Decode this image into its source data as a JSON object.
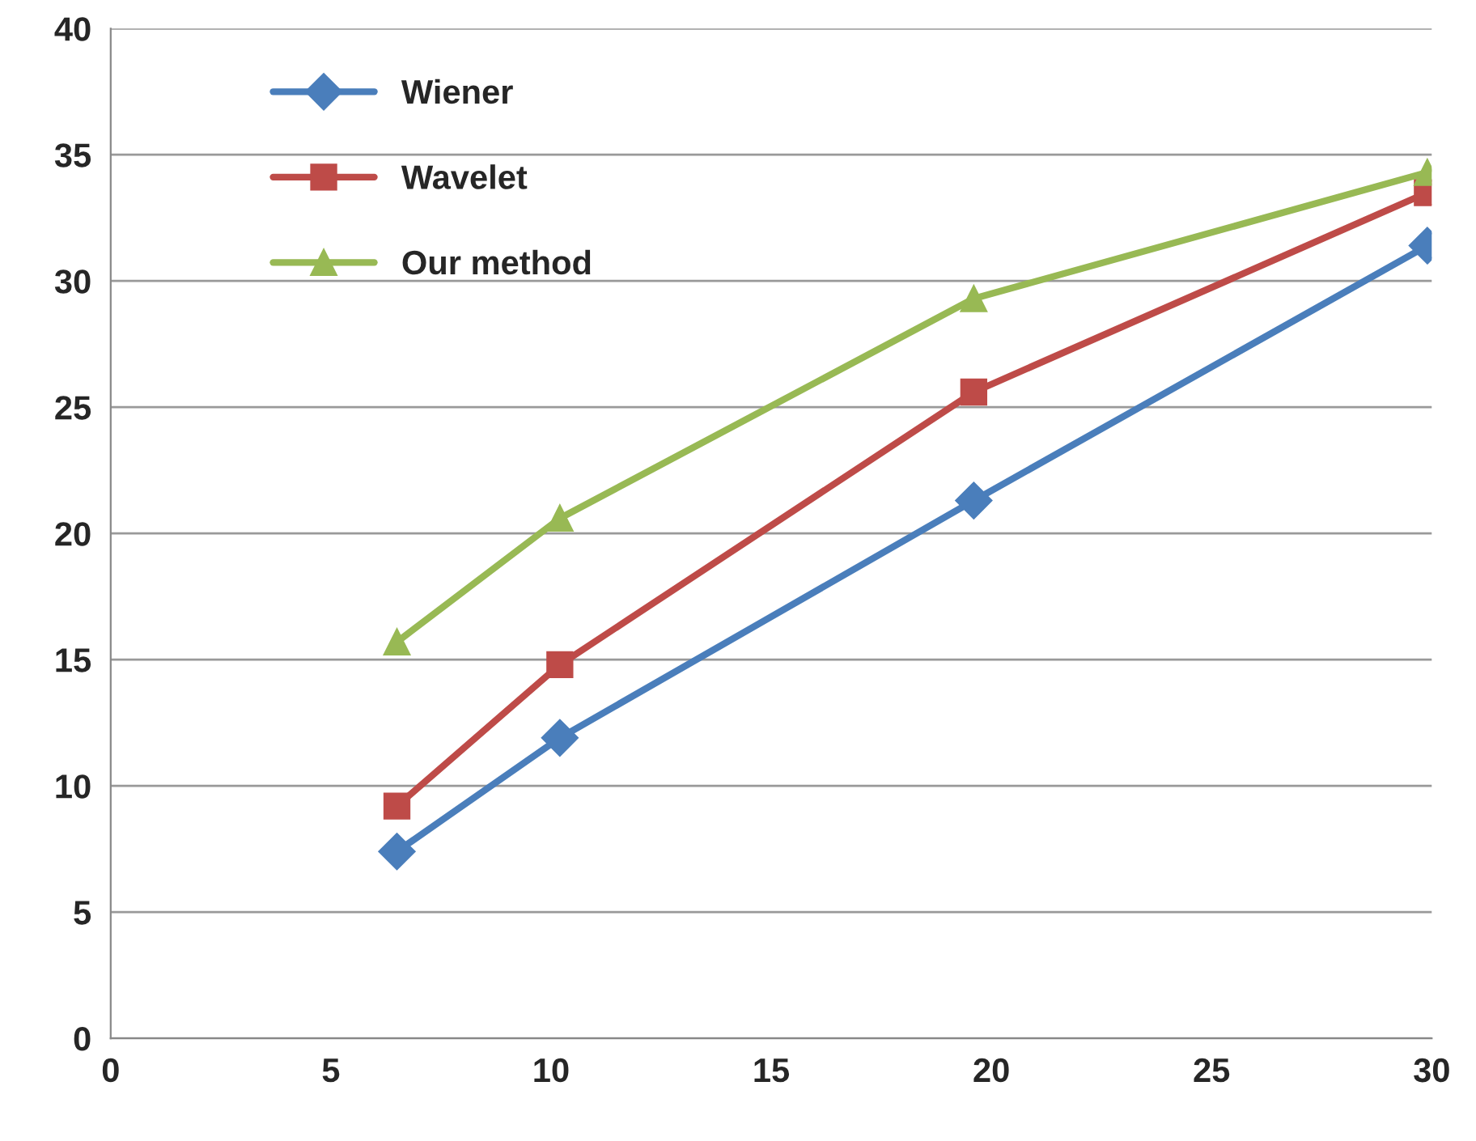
{
  "chart_data": {
    "type": "line",
    "x": [
      6.5,
      10.2,
      19.6,
      29.9
    ],
    "series": [
      {
        "name": "Wiener",
        "color": "#4a7ebb",
        "marker": "diamond",
        "values": [
          7.4,
          11.9,
          21.3,
          31.4
        ]
      },
      {
        "name": "Wavelet",
        "color": "#be4b48",
        "marker": "square",
        "values": [
          9.2,
          14.8,
          25.6,
          33.5
        ]
      },
      {
        "name": "Our method",
        "color": "#98b954",
        "marker": "triangle",
        "values": [
          15.7,
          20.6,
          29.3,
          34.3
        ]
      }
    ],
    "xlim": [
      0,
      30
    ],
    "xticks": [
      0,
      5,
      10,
      15,
      20,
      25,
      30
    ],
    "ylim": [
      0,
      40
    ],
    "yticks": [
      0,
      5,
      10,
      15,
      20,
      25,
      30,
      35,
      40
    ],
    "grid": "y",
    "legend": "top left",
    "line_style": "solid"
  }
}
